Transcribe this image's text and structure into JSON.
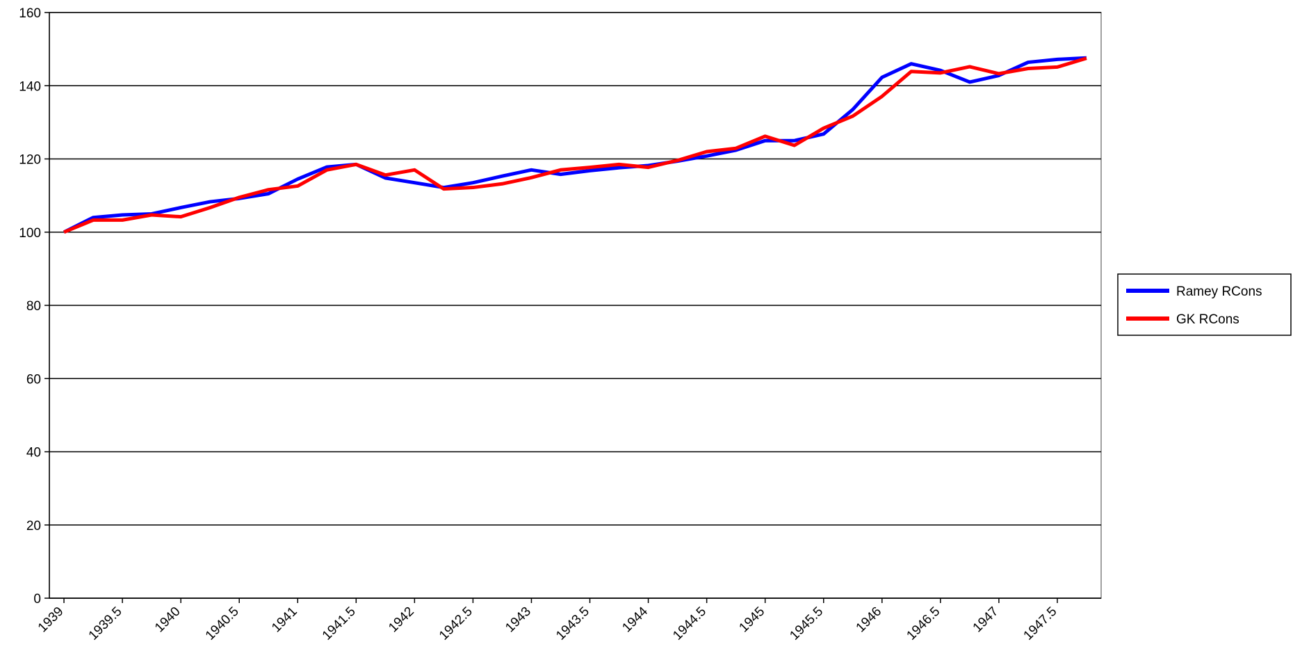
{
  "chart_data": {
    "type": "line",
    "x": [
      1939,
      1939.25,
      1939.5,
      1939.75,
      1940,
      1940.25,
      1940.5,
      1940.75,
      1941,
      1941.25,
      1941.5,
      1941.75,
      1942,
      1942.25,
      1942.5,
      1942.75,
      1943,
      1943.25,
      1943.5,
      1943.75,
      1944,
      1944.25,
      1944.5,
      1944.75,
      1945,
      1945.25,
      1945.5,
      1945.75,
      1946,
      1946.25,
      1946.5,
      1946.75,
      1947,
      1947.25,
      1947.5,
      1947.75
    ],
    "series": [
      {
        "name": "Ramey RCons",
        "color": "#0000ff",
        "values": [
          100,
          104,
          104.7,
          105,
          106.7,
          108.3,
          109.2,
          110.5,
          114.5,
          117.8,
          118.5,
          114.8,
          113.5,
          112.2,
          113.5,
          115.3,
          117,
          115.8,
          116.8,
          117.6,
          118.2,
          119.4,
          120.8,
          122.4,
          125,
          125,
          126.8,
          133.5,
          142.3,
          146,
          144.2,
          141,
          142.8,
          146.4,
          147.2,
          147.6
        ]
      },
      {
        "name": "GK RCons",
        "color": "#ff0000",
        "values": [
          100,
          103.3,
          103.3,
          104.7,
          104.2,
          106.7,
          109.5,
          111.6,
          112.6,
          117,
          118.5,
          115.6,
          117,
          111.8,
          112.2,
          113.2,
          114.9,
          117,
          117.7,
          118.5,
          117.7,
          119.6,
          122,
          122.9,
          126.2,
          123.7,
          128.4,
          131.7,
          137.1,
          143.9,
          143.5,
          145.2,
          143.3,
          144.7,
          145.1,
          147.5
        ]
      }
    ],
    "xlim": [
      1938.875,
      1947.875
    ],
    "xticks": [
      1939,
      1939.5,
      1940,
      1940.5,
      1941,
      1941.5,
      1942,
      1942.5,
      1943,
      1943.5,
      1944,
      1944.5,
      1945,
      1945.5,
      1946,
      1946.5,
      1947,
      1947.5
    ],
    "ylim": [
      0,
      160
    ],
    "yticks": [
      0,
      20,
      40,
      60,
      80,
      100,
      120,
      140,
      160
    ],
    "grid": true,
    "legend": "right"
  }
}
